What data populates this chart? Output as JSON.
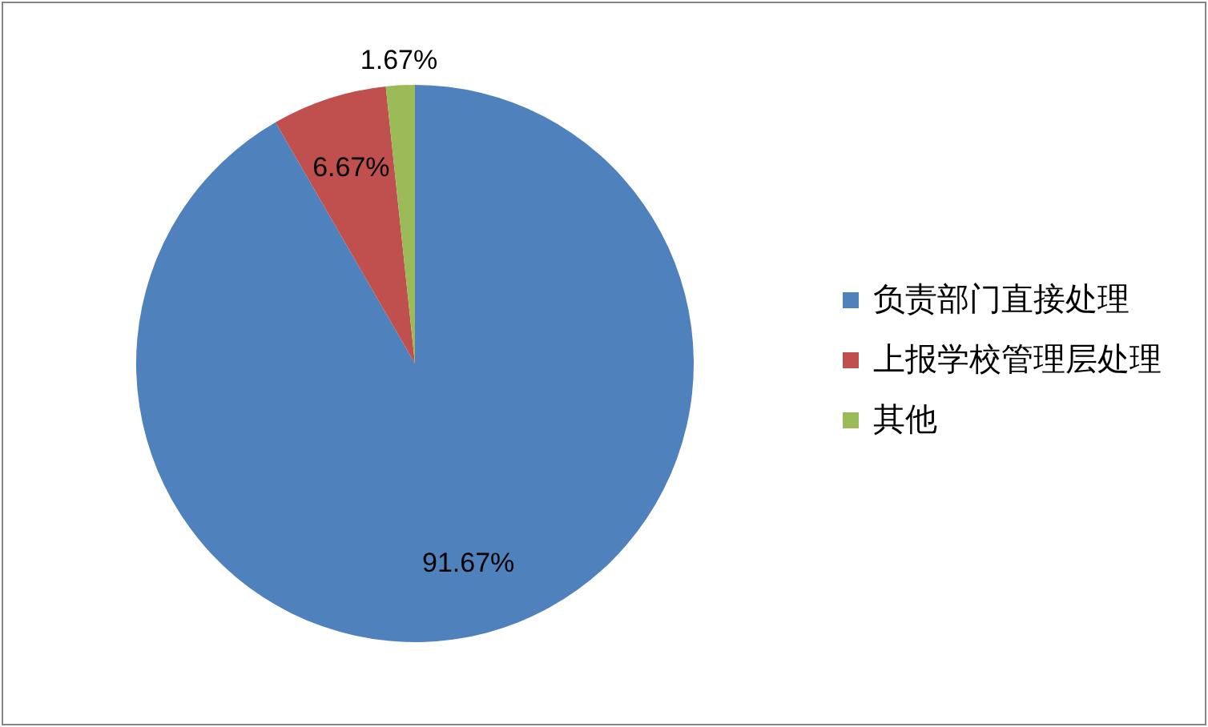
{
  "chart_data": {
    "type": "pie",
    "categories": [
      "负责部门直接处理",
      "上报学校管理层处理",
      "其他"
    ],
    "values": [
      91.67,
      6.67,
      1.67
    ],
    "colors": [
      "#4f81bd",
      "#c0504d",
      "#9bbb59"
    ],
    "value_labels": [
      "91.67%",
      "6.67%",
      "1.67%"
    ],
    "legend": "right"
  }
}
